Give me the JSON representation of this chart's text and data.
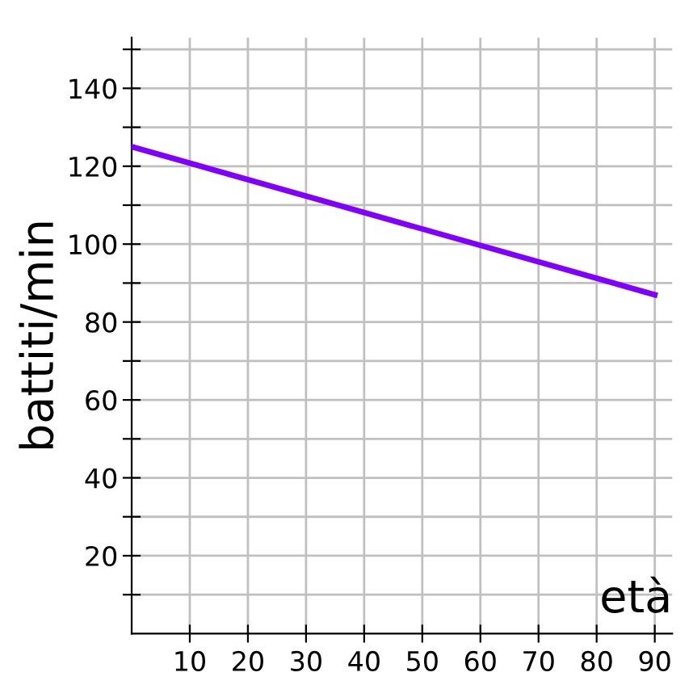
{
  "chart_data": {
    "type": "line",
    "xlabel": "età",
    "ylabel": "battiti/min",
    "x": [
      0,
      90
    ],
    "series": [
      {
        "color": "#8000ff",
        "values": [
          125,
          87
        ]
      }
    ],
    "xlim": [
      0,
      93
    ],
    "ylim": [
      0,
      153
    ],
    "xticks": [
      10,
      20,
      30,
      40,
      50,
      60,
      70,
      80,
      90
    ],
    "yticks": [
      {
        "value": 10,
        "label": null
      },
      20,
      {
        "value": 30,
        "label": null
      },
      40,
      {
        "value": 50,
        "label": null
      },
      60,
      {
        "value": 70,
        "label": null
      },
      80,
      {
        "value": 90,
        "label": null
      },
      100,
      {
        "value": 110,
        "label": null
      },
      120,
      {
        "value": 130,
        "label": null
      },
      140,
      {
        "value": 150,
        "label": null
      }
    ],
    "grid": true,
    "marker": "none",
    "line_style": "solid"
  }
}
